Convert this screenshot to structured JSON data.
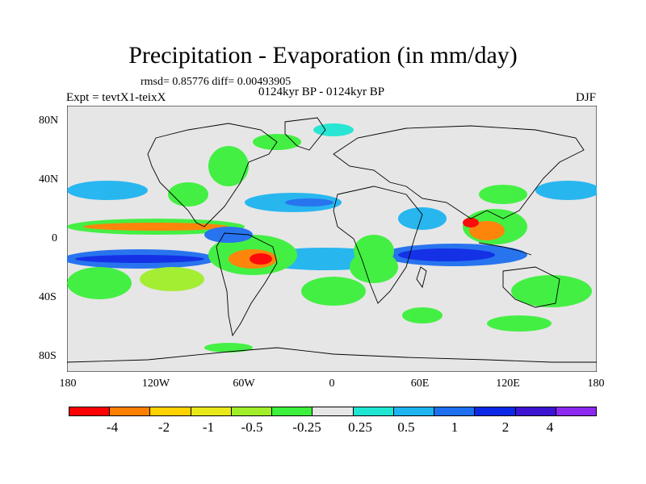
{
  "title": "Precipitation - Evaporation (in mm/day)",
  "stats": "rmsd= 0.85776 diff= 0.00493905",
  "period": "0124kyr BP - 0124kyr BP",
  "experiment": "Expt = tevtX1-teixX",
  "season": "DJF",
  "x_ticks": [
    "180",
    "120W",
    "60W",
    "0",
    "60E",
    "120E",
    "180"
  ],
  "y_ticks": [
    "80N",
    "40N",
    "0",
    "40S",
    "80S"
  ],
  "colorbar": {
    "colors": [
      "#ff0000",
      "#ff8000",
      "#ffd200",
      "#e8e81a",
      "#a0ee2a",
      "#3cf03c",
      "#e6e6e6",
      "#1ee6d2",
      "#1eb4f0",
      "#1e6ef0",
      "#0a28e6",
      "#3c14d2",
      "#8c28f0"
    ],
    "labels": [
      "-4",
      "-2",
      "-1",
      "-0.5",
      "-0.25",
      "0.25",
      "0.5",
      "1",
      "2",
      "4"
    ]
  },
  "map_colors": {
    "background": "#e6e6e6",
    "coast": "#000000"
  }
}
